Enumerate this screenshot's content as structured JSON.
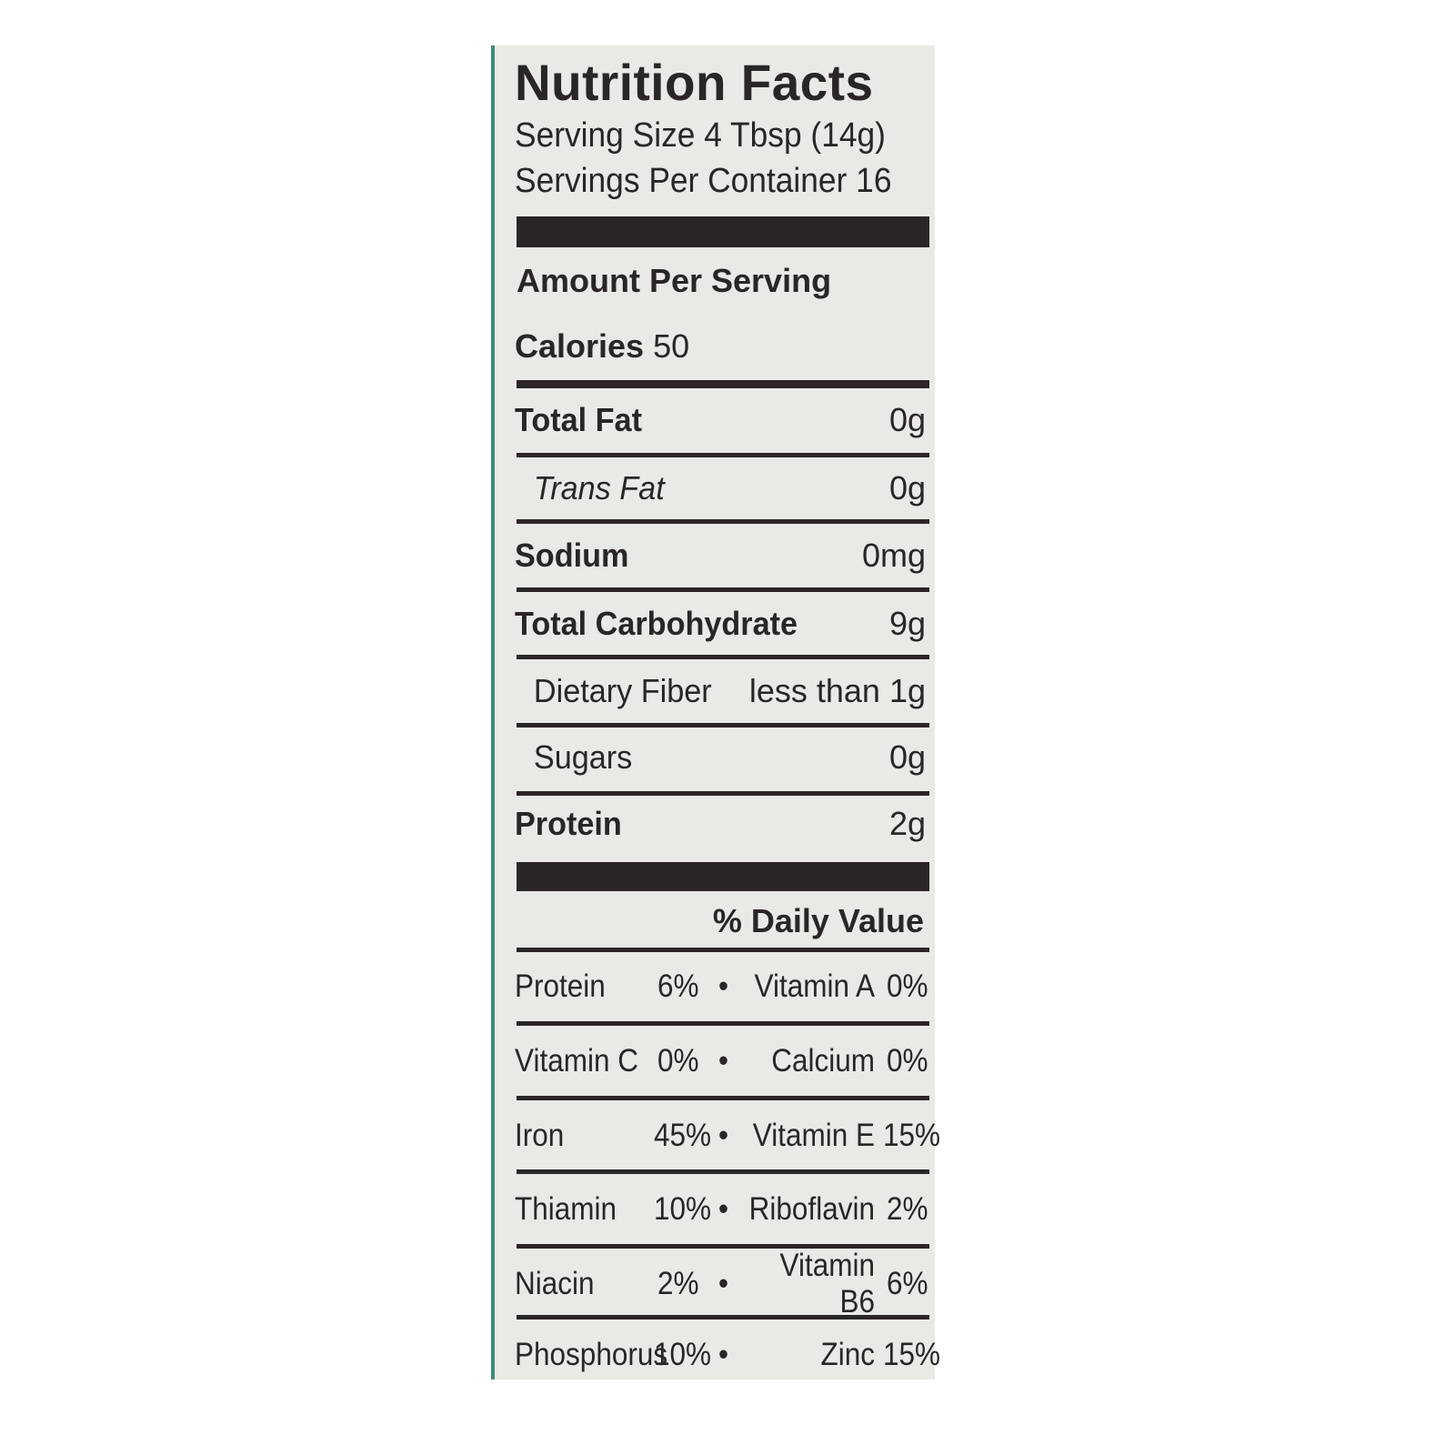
{
  "label": {
    "title": "Nutrition Facts",
    "serving_size": "Serving Size 4 Tbsp (14g)",
    "servings_per_container": "Servings Per Container 16",
    "amount_per_serving": "Amount Per Serving",
    "calories_label": "Calories",
    "calories_value": "50",
    "nutrients": [
      {
        "name": "Total Fat",
        "value": "0g"
      },
      {
        "name": "Trans Fat",
        "value": "0g"
      },
      {
        "name": "Sodium",
        "value": "0mg"
      },
      {
        "name": "Total Carbohydrate",
        "value": "9g"
      },
      {
        "name": "Dietary Fiber",
        "value": "less than 1g"
      },
      {
        "name": "Sugars",
        "value": "0g"
      },
      {
        "name": "Protein",
        "value": "2g"
      }
    ],
    "daily_value_header": "% Daily Value",
    "separator": "•",
    "daily_values": [
      {
        "left": "Protein",
        "left_pct": "6%",
        "right": "Vitamin A",
        "right_pct": "0%"
      },
      {
        "left": "Vitamin C",
        "left_pct": "0%",
        "right": "Calcium",
        "right_pct": "0%"
      },
      {
        "left": "Iron",
        "left_pct": "45%",
        "right": "Vitamin E",
        "right_pct": "15%"
      },
      {
        "left": "Thiamin",
        "left_pct": "10%",
        "right": "Riboflavin",
        "right_pct": "2%"
      },
      {
        "left": "Niacin",
        "left_pct": "2%",
        "right": "Vitamin B6",
        "right_pct": "6%"
      },
      {
        "left": "Phosphorus",
        "left_pct": "10%",
        "right": "Zinc",
        "right_pct": "15%"
      }
    ]
  },
  "colors": {
    "background": "#e9e9e6",
    "ink": "#2a2626",
    "edge": "#3f8a79"
  }
}
